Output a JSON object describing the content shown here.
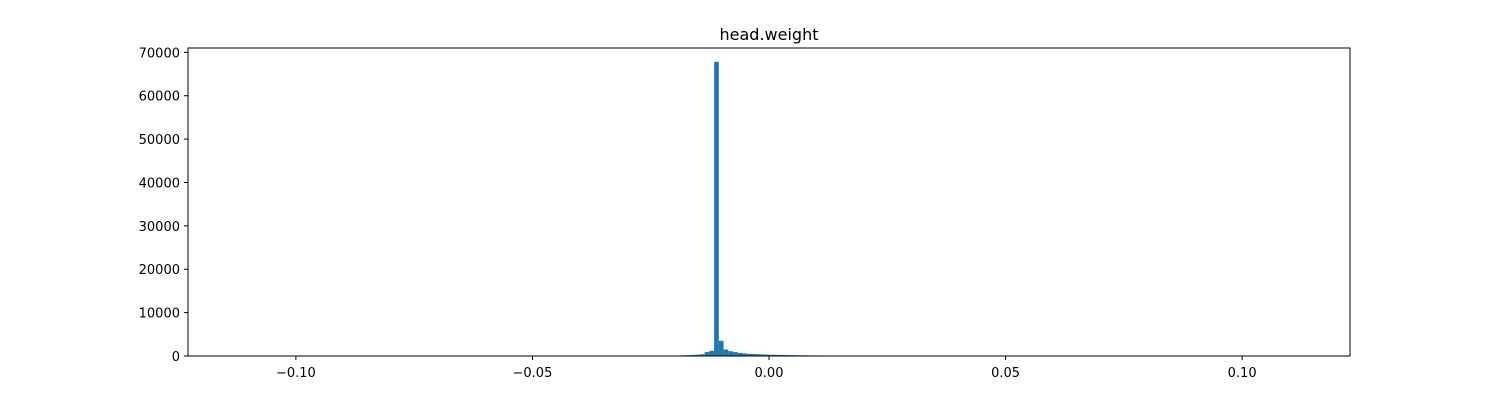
{
  "chart_data": {
    "type": "bar",
    "title": "head.weight",
    "xlabel": "",
    "ylabel": "",
    "xlim": [
      -0.1228,
      0.1228
    ],
    "ylim": [
      0,
      71000
    ],
    "grid": false,
    "x_ticks": [
      -0.1,
      -0.05,
      0.0,
      0.05,
      0.1
    ],
    "x_tick_labels": [
      "−0.10",
      "−0.05",
      "0.00",
      "0.05",
      "0.10"
    ],
    "y_ticks": [
      0,
      10000,
      20000,
      30000,
      40000,
      50000,
      60000,
      70000
    ],
    "y_tick_labels": [
      "0",
      "10000",
      "20000",
      "30000",
      "40000",
      "50000",
      "60000",
      "70000"
    ],
    "bar_color": "#1f77b4",
    "bins": {
      "start": -0.0216,
      "width": 0.001,
      "counts": [
        80,
        100,
        120,
        150,
        200,
        250,
        300,
        400,
        900,
        1200,
        67800,
        3500,
        1500,
        1100,
        900,
        700,
        600,
        500,
        450,
        400,
        350,
        300,
        280,
        260,
        240,
        220,
        200,
        180,
        160,
        150,
        140,
        130,
        120,
        110,
        100,
        90,
        85,
        80,
        75,
        70,
        60,
        55
      ]
    }
  }
}
